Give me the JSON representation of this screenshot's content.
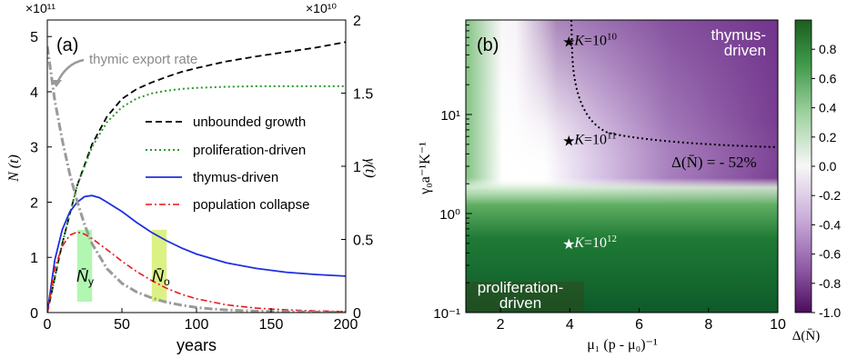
{
  "chart_data": [
    {
      "type": "line",
      "panel_label": "(a)",
      "xlabel": "years",
      "ylabel_left": "N (t)",
      "ylabel_right": "γ(t)",
      "left_axis_multiplier": "×10¹¹",
      "right_axis_multiplier": "×10¹⁰",
      "xlim": [
        0,
        200
      ],
      "ylim_left": [
        0,
        5.3
      ],
      "ylim_right": [
        0,
        2
      ],
      "xticks": [
        "0",
        "50",
        "100",
        "150",
        "200"
      ],
      "yticks_left": [
        "0",
        "1",
        "2",
        "3",
        "4",
        "5"
      ],
      "yticks_right": [
        "0",
        "0.5",
        "1",
        "1.5",
        "2"
      ],
      "annotation": "thymic export rate",
      "window_young_label": "N̄",
      "window_young_sub": "y",
      "window_young": [
        20,
        30
      ],
      "window_old_label": "N̄",
      "window_old_sub": "o",
      "window_old": [
        70,
        80
      ],
      "series": [
        {
          "name": "unbounded growth",
          "axis": "left",
          "color": "#000000",
          "x": [
            0,
            10,
            20,
            30,
            40,
            50,
            60,
            70,
            80,
            90,
            100,
            120,
            140,
            160,
            180,
            200
          ],
          "y": [
            0,
            1.25,
            2.3,
            3.05,
            3.55,
            3.87,
            4.05,
            4.17,
            4.27,
            4.36,
            4.43,
            4.55,
            4.64,
            4.72,
            4.8,
            4.9
          ]
        },
        {
          "name": "proliferation-driven",
          "axis": "left",
          "color": "#2a9a2a",
          "x": [
            0,
            10,
            20,
            30,
            40,
            50,
            60,
            70,
            80,
            90,
            100,
            120,
            140,
            160,
            180,
            200
          ],
          "y": [
            0,
            1.25,
            2.3,
            3.0,
            3.45,
            3.72,
            3.88,
            3.97,
            4.02,
            4.05,
            4.07,
            4.09,
            4.1,
            4.1,
            4.1,
            4.1
          ]
        },
        {
          "name": "thymus-driven",
          "axis": "left",
          "color": "#1f2fe0",
          "x": [
            0,
            5,
            10,
            15,
            20,
            25,
            30,
            35,
            40,
            50,
            60,
            70,
            80,
            90,
            100,
            120,
            140,
            160,
            180,
            200
          ],
          "y": [
            0,
            0.95,
            1.5,
            1.82,
            2.0,
            2.1,
            2.12,
            2.08,
            2.0,
            1.83,
            1.63,
            1.45,
            1.3,
            1.17,
            1.06,
            0.9,
            0.8,
            0.73,
            0.69,
            0.66
          ]
        },
        {
          "name": "population collapse",
          "axis": "left",
          "color": "#e8171a",
          "x": [
            0,
            5,
            10,
            15,
            20,
            25,
            30,
            40,
            50,
            60,
            70,
            80,
            90,
            100,
            120,
            140,
            160,
            180,
            200
          ],
          "y": [
            0,
            0.8,
            1.2,
            1.4,
            1.46,
            1.42,
            1.34,
            1.14,
            0.93,
            0.74,
            0.58,
            0.44,
            0.33,
            0.25,
            0.14,
            0.08,
            0.05,
            0.03,
            0.02
          ]
        },
        {
          "name": "thymic export rate",
          "axis": "right",
          "color": "#9a9a9a",
          "x": [
            0,
            5,
            10,
            15,
            20,
            25,
            30,
            40,
            50,
            60,
            70,
            80,
            90,
            100,
            110,
            120,
            140,
            160,
            180,
            200
          ],
          "y": [
            1.82,
            1.45,
            1.18,
            0.95,
            0.76,
            0.6,
            0.47,
            0.3,
            0.2,
            0.14,
            0.1,
            0.07,
            0.05,
            0.035,
            0.025,
            0.018,
            0.01,
            0.006,
            0.004,
            0.002
          ]
        }
      ]
    },
    {
      "type": "heatmap",
      "panel_label": "(b)",
      "xlabel": "μ₁ (p - μ₀)⁻¹",
      "ylabel": "γ₀a⁻¹K⁻¹",
      "xlim": [
        1,
        10
      ],
      "ylim": [
        0.1,
        90
      ],
      "y_scale": "log",
      "xticks": [
        "2",
        "4",
        "6",
        "8",
        "10"
      ],
      "yticks": [
        "10⁻¹",
        "10⁰",
        "10¹"
      ],
      "colorbar_label": "Δ(N̄)",
      "colorbar_range": [
        -1.0,
        1.0
      ],
      "colorbar_ticks": [
        "0.8",
        "0.6",
        "0.4",
        "0.2",
        "0.0",
        "-0.2",
        "-0.4",
        "-0.6",
        "-0.8",
        "-1.0"
      ],
      "region_labels": {
        "top_right": "thymus-\ndriven",
        "bottom_left": "proliferation-\ndriven"
      },
      "contour_label": "Δ(N̄) = - 52%",
      "markers": [
        {
          "x": 4,
          "y": 55,
          "label": "K=10",
          "exp": "10",
          "color": "#000000"
        },
        {
          "x": 4,
          "y": 5.5,
          "label": "K=10",
          "exp": "11",
          "color": "#000000"
        },
        {
          "x": 4,
          "y": 0.5,
          "label": "K=10",
          "exp": "12",
          "color": "#ffffff"
        }
      ]
    }
  ]
}
